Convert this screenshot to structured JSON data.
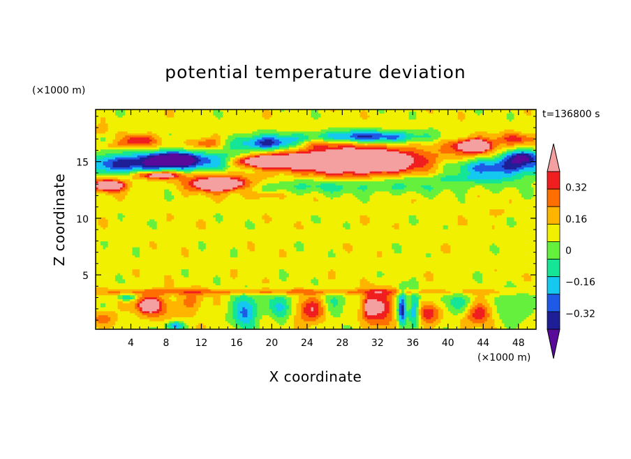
{
  "chart_data": {
    "type": "heatmap",
    "title": "potential temperature deviation",
    "xlabel": "X coordinate",
    "ylabel": "Z coordinate",
    "x_unit": "(×1000 m)",
    "y_unit": "(×1000 m)",
    "time_label": "t=136800 s",
    "xlim": [
      0,
      50
    ],
    "ylim": [
      0.2,
      19.6
    ],
    "x_ticks": [
      4,
      8,
      12,
      16,
      20,
      24,
      28,
      32,
      36,
      40,
      44,
      48
    ],
    "y_ticks": [
      5,
      10,
      15
    ],
    "colorbar": {
      "levels": [
        -0.4,
        -0.32,
        -0.24,
        -0.16,
        -0.08,
        0,
        0.08,
        0.16,
        0.24,
        0.32,
        0.4
      ],
      "colors": [
        "#5a0a9a",
        "#1e1e96",
        "#1e5ae6",
        "#14c8f0",
        "#14e696",
        "#64f03c",
        "#f0f000",
        "#ffb400",
        "#ff6e00",
        "#f01e1e",
        "#f5a0a0"
      ],
      "tick_labels": [
        "0.32",
        "0.16",
        "0",
        "−0.16",
        "−0.32"
      ],
      "tick_values": [
        0.32,
        0.16,
        0,
        -0.16,
        -0.32
      ]
    },
    "background_level": 0.04,
    "features": [
      {
        "x": 4,
        "z": 14.8,
        "rx": 6.0,
        "rz": 0.9,
        "v": -0.42
      },
      {
        "x": 9,
        "z": 15.3,
        "rx": 2.5,
        "rz": 0.6,
        "v": -0.42
      },
      {
        "x": 14.5,
        "z": 15.0,
        "rx": 5.5,
        "rz": 0.8,
        "v": -0.36
      },
      {
        "x": 19.5,
        "z": 16.6,
        "rx": 3.8,
        "rz": 0.7,
        "v": -0.4
      },
      {
        "x": 3.2,
        "z": 16.4,
        "rx": 3.0,
        "rz": 0.35,
        "v": 0.12
      },
      {
        "x": 4.8,
        "z": 16.9,
        "rx": 1.8,
        "rz": 0.45,
        "v": 0.28
      },
      {
        "x": 12.6,
        "z": 16.6,
        "rx": 1.6,
        "rz": 0.5,
        "v": 0.24
      },
      {
        "x": 7.5,
        "z": 13.8,
        "rx": 4.0,
        "rz": 0.5,
        "v": 0.18
      },
      {
        "x": 7.2,
        "z": 13.8,
        "rx": 2.0,
        "rz": 0.25,
        "v": 0.34
      },
      {
        "x": 1.5,
        "z": 12.9,
        "rx": 2.2,
        "rz": 0.6,
        "v": 0.34
      },
      {
        "x": 1.5,
        "z": 12.9,
        "rx": 1.2,
        "rz": 0.3,
        "v": 0.45
      },
      {
        "x": 14.0,
        "z": 13.0,
        "rx": 3.8,
        "rz": 0.8,
        "v": 0.3
      },
      {
        "x": 14.0,
        "z": 13.0,
        "rx": 2.6,
        "rz": 0.5,
        "v": 0.45
      },
      {
        "x": 19.0,
        "z": 15.0,
        "rx": 4.8,
        "rz": 0.75,
        "v": 0.3
      },
      {
        "x": 19.0,
        "z": 15.0,
        "rx": 3.5,
        "rz": 0.45,
        "v": 0.45
      },
      {
        "x": 29.5,
        "z": 15.2,
        "rx": 9.0,
        "rz": 1.4,
        "v": 0.26
      },
      {
        "x": 29.5,
        "z": 15.0,
        "rx": 6.8,
        "rz": 0.95,
        "v": 0.45
      },
      {
        "x": 31.0,
        "z": 17.2,
        "rx": 6.5,
        "rz": 0.55,
        "v": -0.38
      },
      {
        "x": 25.0,
        "z": 16.5,
        "rx": 2.5,
        "rz": 0.4,
        "v": 0.14
      },
      {
        "x": 43.0,
        "z": 16.4,
        "rx": 2.8,
        "rz": 0.8,
        "v": 0.26
      },
      {
        "x": 43.0,
        "z": 16.4,
        "rx": 1.6,
        "rz": 0.45,
        "v": 0.45
      },
      {
        "x": 46.0,
        "z": 14.5,
        "rx": 5.5,
        "rz": 0.8,
        "v": -0.38
      },
      {
        "x": 48.5,
        "z": 15.4,
        "rx": 2.0,
        "rz": 0.6,
        "v": -0.4
      },
      {
        "x": 48.0,
        "z": 17.0,
        "rx": 2.5,
        "rz": 0.5,
        "v": 0.2
      },
      {
        "x": 0.6,
        "z": 17.8,
        "rx": 0.8,
        "rz": 0.4,
        "v": 0.12
      },
      {
        "x": 28.0,
        "z": 12.8,
        "rx": 16.0,
        "rz": 0.65,
        "v": -0.14
      },
      {
        "x": 42.0,
        "z": 13.5,
        "rx": 7.0,
        "rz": 0.4,
        "v": -0.14
      },
      {
        "x": 19.0,
        "z": 12.0,
        "rx": 2.0,
        "rz": 0.3,
        "v": 0.15
      },
      {
        "x": 45.5,
        "z": 10.5,
        "rx": 1.0,
        "rz": 0.3,
        "v": 0.12
      },
      {
        "x": 6.5,
        "z": 2.3,
        "rx": 2.3,
        "rz": 1.1,
        "v": 0.24
      },
      {
        "x": 6.0,
        "z": 2.3,
        "rx": 1.0,
        "rz": 0.5,
        "v": 0.32
      },
      {
        "x": 11.0,
        "z": 2.6,
        "rx": 1.2,
        "rz": 1.1,
        "v": 0.15
      },
      {
        "x": 17.0,
        "z": 1.8,
        "rx": 1.4,
        "rz": 1.4,
        "v": -0.33
      },
      {
        "x": 21.0,
        "z": 2.2,
        "rx": 1.2,
        "rz": 1.2,
        "v": -0.24
      },
      {
        "x": 24.5,
        "z": 1.8,
        "rx": 1.8,
        "rz": 1.1,
        "v": 0.28
      },
      {
        "x": 32.5,
        "z": 2.0,
        "rx": 1.5,
        "rz": 1.6,
        "v": 0.28
      },
      {
        "x": 31.0,
        "z": 2.2,
        "rx": 0.8,
        "rz": 1.0,
        "v": 0.35
      },
      {
        "x": 34.8,
        "z": 2.0,
        "rx": 0.5,
        "rz": 1.6,
        "v": -0.4
      },
      {
        "x": 36.2,
        "z": 2.0,
        "rx": 0.6,
        "rz": 1.5,
        "v": -0.32
      },
      {
        "x": 37.8,
        "z": 1.6,
        "rx": 1.3,
        "rz": 1.0,
        "v": 0.26
      },
      {
        "x": 43.5,
        "z": 1.6,
        "rx": 1.6,
        "rz": 1.0,
        "v": 0.28
      },
      {
        "x": 9.0,
        "z": 0.5,
        "rx": 1.0,
        "rz": 0.4,
        "v": -0.3
      },
      {
        "x": 41.0,
        "z": 2.5,
        "rx": 2.0,
        "rz": 1.2,
        "v": -0.14
      },
      {
        "x": 47.5,
        "z": 2.2,
        "rx": 2.5,
        "rz": 1.3,
        "v": -0.12
      },
      {
        "x": 27.0,
        "z": 2.3,
        "rx": 1.5,
        "rz": 1.2,
        "v": -0.14
      },
      {
        "x": 20.0,
        "z": 3.5,
        "rx": 30.0,
        "rz": 0.25,
        "v": 0.16
      },
      {
        "x": 3.5,
        "z": 3.0,
        "rx": 1.0,
        "rz": 0.3,
        "v": -0.26
      },
      {
        "x": 1.0,
        "z": 1.2,
        "rx": 1.5,
        "rz": 0.6,
        "v": 0.16
      }
    ]
  }
}
